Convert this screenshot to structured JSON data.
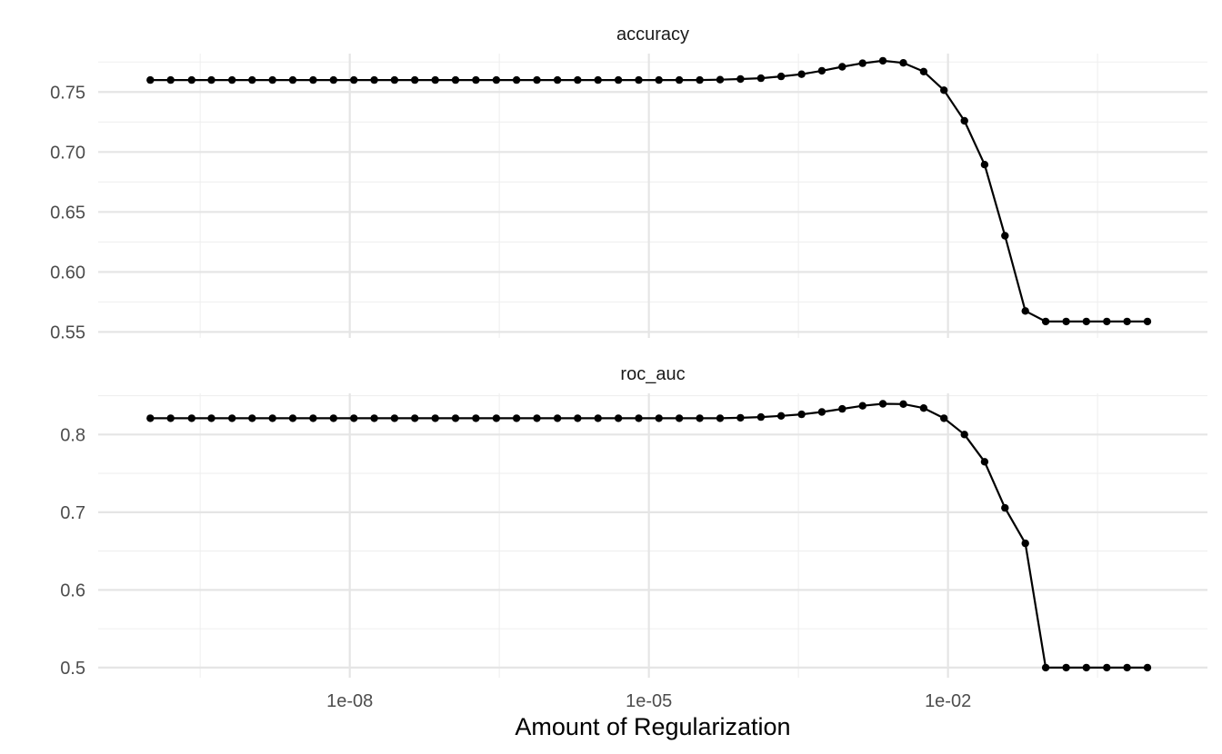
{
  "chart_data": {
    "type": "line",
    "xlabel": "Amount of Regularization",
    "x_scale": "log10",
    "x_range": [
      3e-11,
      4
    ],
    "x_ticks": [
      1e-08,
      1e-05,
      0.01
    ],
    "x_tick_labels": [
      "1e-08",
      "1e-05",
      "1e-02"
    ],
    "x": [
      1e-10,
      1.6e-10,
      2.6e-10,
      4.1e-10,
      6.6e-10,
      1.05e-09,
      1.68e-09,
      2.68e-09,
      4.29e-09,
      6.87e-09,
      1.1e-08,
      1.76e-08,
      2.81e-08,
      4.49e-08,
      7.2e-08,
      1.15e-07,
      1.84e-07,
      2.95e-07,
      4.71e-07,
      7.54e-07,
      1.21e-06,
      1.93e-06,
      3.09e-06,
      4.94e-06,
      7.91e-06,
      1.26e-05,
      2.02e-05,
      3.24e-05,
      5.18e-05,
      8.29e-05,
      0.000133,
      0.000212,
      0.00034,
      0.000543,
      0.000869,
      0.00139,
      0.00222,
      0.00356,
      0.0057,
      0.0091,
      0.0146,
      0.0233,
      0.0373,
      0.0597,
      0.0955,
      0.153,
      0.244,
      0.391,
      0.625,
      1
    ],
    "panels": [
      {
        "strip": "accuracy",
        "ylim": [
          0.545,
          0.782
        ],
        "y_ticks": [
          0.55,
          0.6,
          0.65,
          0.7,
          0.75
        ],
        "y_tick_labels": [
          "0.55",
          "0.60",
          "0.65",
          "0.70",
          "0.75"
        ],
        "values": [
          0.76,
          0.76,
          0.76,
          0.76,
          0.76,
          0.76,
          0.76,
          0.76,
          0.76,
          0.76,
          0.76,
          0.76,
          0.76,
          0.76,
          0.76,
          0.76,
          0.76,
          0.76,
          0.76,
          0.76,
          0.76,
          0.76,
          0.76,
          0.76,
          0.76,
          0.76,
          0.76,
          0.76,
          0.7603,
          0.7608,
          0.7615,
          0.763,
          0.7648,
          0.7677,
          0.771,
          0.774,
          0.776,
          0.7743,
          0.767,
          0.7515,
          0.726,
          0.6895,
          0.6302,
          0.5675,
          0.5587,
          0.5587,
          0.5587,
          0.5587,
          0.5587,
          0.5587
        ]
      },
      {
        "strip": "roc_auc",
        "ylim": [
          0.487,
          0.853
        ],
        "y_ticks": [
          0.5,
          0.6,
          0.7,
          0.8
        ],
        "y_tick_labels": [
          "0.5",
          "0.6",
          "0.7",
          "0.8"
        ],
        "values": [
          0.821,
          0.821,
          0.821,
          0.821,
          0.821,
          0.821,
          0.821,
          0.821,
          0.821,
          0.821,
          0.821,
          0.821,
          0.821,
          0.821,
          0.821,
          0.821,
          0.821,
          0.821,
          0.821,
          0.821,
          0.821,
          0.821,
          0.821,
          0.821,
          0.821,
          0.821,
          0.821,
          0.821,
          0.821,
          0.8215,
          0.8225,
          0.824,
          0.826,
          0.829,
          0.833,
          0.837,
          0.8395,
          0.8392,
          0.834,
          0.821,
          0.8,
          0.765,
          0.7055,
          0.66,
          0.5,
          0.5,
          0.5,
          0.5,
          0.5,
          0.5
        ]
      }
    ]
  }
}
